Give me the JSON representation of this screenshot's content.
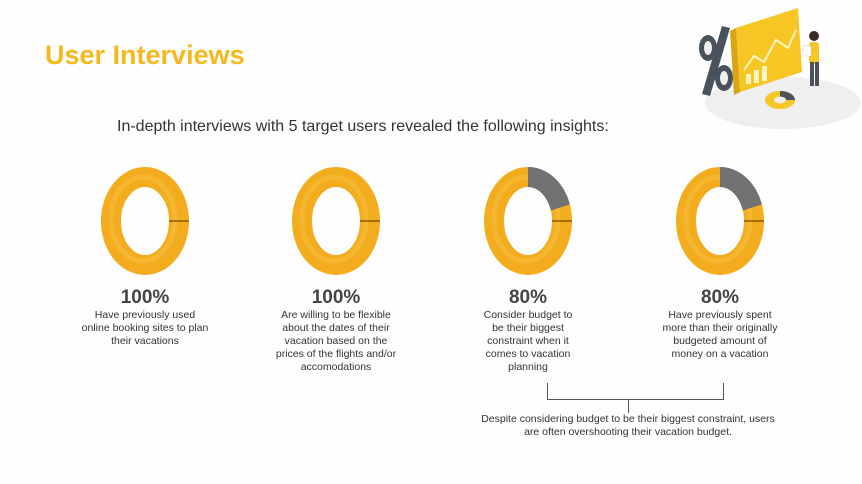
{
  "page": {
    "title": "User Interviews",
    "subtitle": "In-depth interviews with 5 target users revealed the following insights:"
  },
  "colors": {
    "accent": "#f5b820",
    "ring_fill": "#f2ac1d",
    "ring_rest": "#717171"
  },
  "stats": [
    {
      "percent_label": "100%",
      "value": 100,
      "description": "Have previously used online booking sites to plan their vacations"
    },
    {
      "percent_label": "100%",
      "value": 100,
      "description": "Are willing to be flexible about the dates of their vacation based on the prices of the flights and/or accomodations"
    },
    {
      "percent_label": "80%",
      "value": 80,
      "description": "Consider budget to be their biggest constraint when it comes to vacation planning"
    },
    {
      "percent_label": "80%",
      "value": 80,
      "description": "Have previously spent more than their originally budgeted amount of money on a vacation"
    }
  ],
  "note": "Despite considering budget to be their biggest constraint, users are often overshooting their vacation budget.",
  "illustration": {
    "icon": "analytics-illustration-icon"
  }
}
